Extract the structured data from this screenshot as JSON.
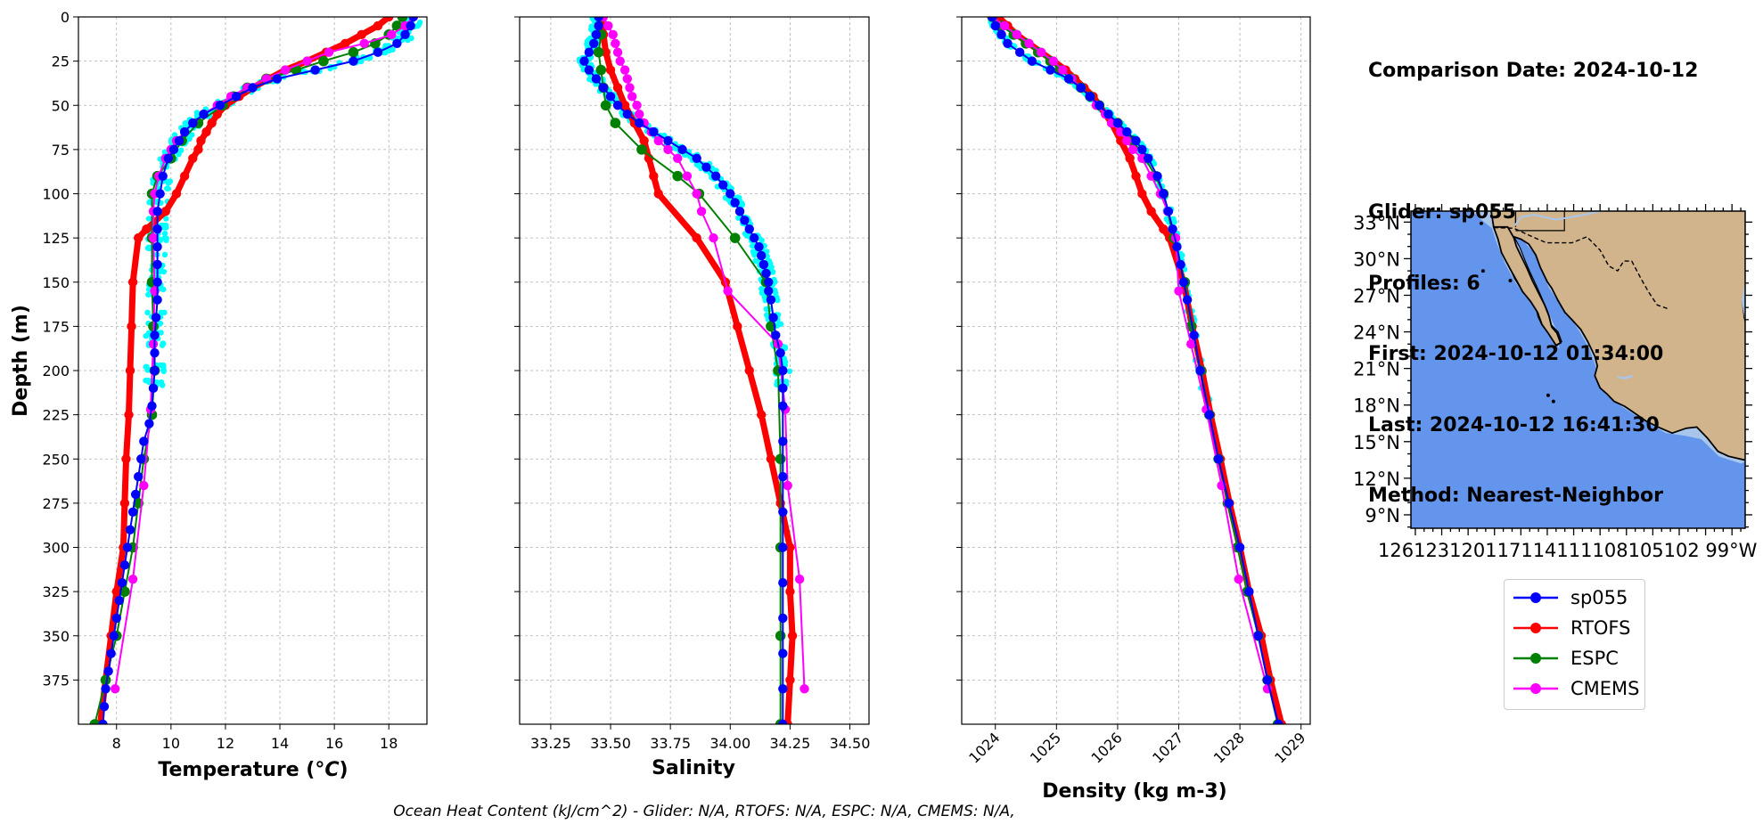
{
  "info": {
    "comparison_date": "Comparison Date: 2024-10-12",
    "glider": "Glider: sp055",
    "profiles": "Profiles: 6",
    "first": "First: 2024-10-12 01:34:00",
    "last": "Last: 2024-10-12 16:41:30",
    "method": "Method: Nearest-Neighbor"
  },
  "footer": "Ocean Heat Content (kJ/cm^2) - Glider: N/A,  RTOFS: N/A,  ESPC: N/A,  CMEMS: N/A,",
  "colors": {
    "sp055": "#0000ff",
    "RTOFS": "#ff0000",
    "ESPC": "#008000",
    "CMEMS": "#ff00ff",
    "raw": "#00ffff",
    "ocean": "#6495ed",
    "land": "#d2b48c",
    "shelf": "#a9c6ea"
  },
  "legend": [
    {
      "name": "sp055",
      "color": "#0000ff"
    },
    {
      "name": "RTOFS",
      "color": "#ff0000"
    },
    {
      "name": "ESPC",
      "color": "#008000"
    },
    {
      "name": "CMEMS",
      "color": "#ff00ff"
    }
  ],
  "map": {
    "lat_labels": [
      "33°N",
      "30°N",
      "27°N",
      "24°N",
      "21°N",
      "18°N",
      "15°N",
      "12°N",
      "9°N"
    ],
    "lon_labels": [
      "126°W",
      "123°W",
      "120°W",
      "117°W",
      "114°W",
      "111°W",
      "108°W",
      "105°W",
      "102°W",
      "99°W"
    ],
    "lon_label_overlap": "126123120117114111108105102 99°W"
  },
  "chart_data": [
    {
      "type": "line",
      "id": "temperature",
      "xlabel": "Temperature ($^{o}C$)",
      "xlabel_display": "Temperature (°C)",
      "ylabel": "Depth (m)",
      "xlim": [
        6.6,
        19.4
      ],
      "ylim": [
        400,
        0
      ],
      "xticks": [
        8,
        10,
        12,
        14,
        16,
        18
      ],
      "yticks": [
        0,
        25,
        50,
        75,
        100,
        125,
        150,
        175,
        200,
        225,
        250,
        275,
        300,
        325,
        350,
        375
      ],
      "grid": true,
      "series": [
        {
          "name": "sp055",
          "depth": [
            0,
            5,
            10,
            15,
            20,
            25,
            30,
            35,
            40,
            45,
            50,
            55,
            60,
            65,
            70,
            75,
            80,
            90,
            100,
            110,
            120,
            130,
            140,
            150,
            160,
            170,
            180,
            190,
            200,
            210,
            220,
            230,
            240,
            250,
            260,
            270,
            280,
            290,
            300,
            310,
            320,
            330,
            340,
            350,
            360,
            370,
            380,
            390,
            400
          ],
          "values": [
            18.9,
            18.8,
            18.6,
            18.3,
            17.6,
            16.7,
            15.3,
            13.9,
            13.0,
            12.4,
            11.8,
            11.2,
            10.8,
            10.5,
            10.3,
            10.1,
            9.9,
            9.7,
            9.6,
            9.5,
            9.5,
            9.5,
            9.5,
            9.5,
            9.5,
            9.45,
            9.4,
            9.4,
            9.4,
            9.35,
            9.3,
            9.2,
            9.0,
            8.9,
            8.8,
            8.7,
            8.6,
            8.5,
            8.4,
            8.3,
            8.2,
            8.1,
            8.0,
            7.9,
            7.8,
            7.7,
            7.6,
            7.55,
            7.5
          ]
        },
        {
          "name": "RTOFS",
          "depth": [
            0,
            5,
            10,
            15,
            20,
            25,
            30,
            35,
            40,
            45,
            50,
            55,
            60,
            65,
            70,
            75,
            80,
            90,
            100,
            110,
            120,
            125,
            150,
            175,
            200,
            225,
            250,
            275,
            300,
            325,
            350,
            375,
            400
          ],
          "values": [
            18.0,
            17.6,
            17.0,
            16.4,
            15.7,
            15.0,
            14.2,
            13.6,
            13.0,
            12.5,
            12.0,
            11.7,
            11.5,
            11.3,
            11.1,
            11.0,
            10.8,
            10.5,
            10.2,
            9.8,
            9.1,
            8.8,
            8.6,
            8.55,
            8.5,
            8.45,
            8.35,
            8.3,
            8.25,
            8.0,
            7.8,
            7.6,
            7.4
          ]
        },
        {
          "name": "ESPC",
          "depth": [
            0,
            5,
            10,
            15,
            20,
            25,
            30,
            35,
            40,
            45,
            50,
            60,
            70,
            80,
            90,
            100,
            125,
            150,
            175,
            200,
            225,
            250,
            275,
            300,
            325,
            350,
            375,
            400
          ],
          "values": [
            18.5,
            18.3,
            18.0,
            17.5,
            16.7,
            15.6,
            14.6,
            13.5,
            12.8,
            12.3,
            11.9,
            11.0,
            10.4,
            10.0,
            9.5,
            9.3,
            9.3,
            9.3,
            9.35,
            9.4,
            9.3,
            9.0,
            8.8,
            8.6,
            8.3,
            8.0,
            7.6,
            7.2
          ]
        },
        {
          "name": "CMEMS",
          "depth": [
            0,
            5,
            10,
            15,
            20,
            25,
            30,
            35,
            40,
            45,
            50,
            55,
            60,
            65,
            70,
            75,
            80,
            90,
            100,
            110,
            125,
            155,
            185,
            222,
            265,
            318,
            380
          ],
          "values": [
            18.9,
            18.6,
            18.1,
            17.1,
            15.8,
            15.0,
            14.2,
            13.5,
            12.8,
            12.2,
            11.7,
            11.2,
            10.8,
            10.5,
            10.2,
            10.0,
            9.8,
            9.55,
            9.4,
            9.35,
            9.35,
            9.4,
            9.35,
            9.25,
            9.0,
            8.6,
            7.95
          ]
        }
      ]
    },
    {
      "type": "line",
      "id": "salinity",
      "xlabel": "Salinity",
      "xlim": [
        33.12,
        34.58
      ],
      "ylim": [
        400,
        0
      ],
      "xticks": [
        33.25,
        33.5,
        33.75,
        34.0,
        34.25,
        34.5
      ],
      "xtick_labels": [
        "33.25",
        "33.50",
        "33.75",
        "34.00",
        "34.25",
        "34.50"
      ],
      "grid": true,
      "series": [
        {
          "name": "sp055",
          "depth": [
            0,
            5,
            10,
            15,
            20,
            25,
            30,
            35,
            40,
            45,
            50,
            55,
            60,
            65,
            70,
            75,
            80,
            85,
            90,
            95,
            100,
            105,
            110,
            115,
            120,
            125,
            130,
            135,
            140,
            145,
            150,
            155,
            160,
            170,
            180,
            190,
            200,
            210,
            220,
            240,
            260,
            280,
            300,
            320,
            340,
            360,
            380,
            400
          ],
          "values": [
            33.45,
            33.45,
            33.44,
            33.43,
            33.41,
            33.39,
            33.41,
            33.44,
            33.47,
            33.5,
            33.53,
            33.57,
            33.62,
            33.68,
            33.74,
            33.8,
            33.86,
            33.9,
            33.94,
            33.97,
            34.0,
            34.02,
            34.04,
            34.06,
            34.08,
            34.1,
            34.12,
            34.13,
            34.14,
            34.15,
            34.16,
            34.16,
            34.17,
            34.18,
            34.19,
            34.21,
            34.22,
            34.22,
            34.22,
            34.22,
            34.22,
            34.22,
            34.22,
            34.22,
            34.22,
            34.22,
            34.22,
            34.22
          ]
        },
        {
          "name": "RTOFS",
          "depth": [
            0,
            10,
            20,
            30,
            40,
            50,
            60,
            70,
            80,
            90,
            100,
            125,
            150,
            175,
            200,
            225,
            250,
            275,
            300,
            325,
            350,
            375,
            400
          ],
          "values": [
            33.46,
            33.47,
            33.48,
            33.5,
            33.53,
            33.56,
            33.6,
            33.64,
            33.66,
            33.68,
            33.7,
            33.86,
            33.98,
            34.03,
            34.08,
            34.13,
            34.17,
            34.21,
            34.25,
            34.25,
            34.26,
            34.25,
            34.24
          ]
        },
        {
          "name": "ESPC",
          "depth": [
            0,
            10,
            20,
            30,
            40,
            50,
            60,
            75,
            90,
            100,
            125,
            150,
            175,
            200,
            250,
            300,
            350,
            400
          ],
          "values": [
            33.46,
            33.46,
            33.45,
            33.46,
            33.47,
            33.48,
            33.52,
            33.63,
            33.78,
            33.87,
            34.02,
            34.15,
            34.17,
            34.2,
            34.21,
            34.21,
            34.21,
            34.21
          ]
        },
        {
          "name": "CMEMS",
          "depth": [
            0,
            5,
            10,
            15,
            20,
            25,
            30,
            35,
            40,
            45,
            50,
            55,
            60,
            65,
            70,
            75,
            80,
            90,
            100,
            110,
            125,
            155,
            185,
            222,
            265,
            318,
            380
          ],
          "values": [
            33.47,
            33.49,
            33.51,
            33.52,
            33.53,
            33.54,
            33.56,
            33.57,
            33.58,
            33.59,
            33.61,
            33.62,
            33.64,
            33.67,
            33.7,
            33.74,
            33.78,
            33.82,
            33.86,
            33.88,
            33.93,
            33.99,
            34.2,
            34.23,
            34.24,
            34.29,
            34.31
          ]
        }
      ]
    },
    {
      "type": "line",
      "id": "density",
      "xlabel": "Density (kg m-3)",
      "xlim": [
        1023.45,
        1029.15
      ],
      "ylim": [
        400,
        0
      ],
      "xticks": [
        1024,
        1025,
        1026,
        1027,
        1028,
        1029
      ],
      "grid": true,
      "series": [
        {
          "name": "sp055",
          "depth": [
            0,
            5,
            10,
            15,
            20,
            25,
            30,
            35,
            40,
            45,
            50,
            55,
            60,
            65,
            70,
            75,
            80,
            90,
            100,
            110,
            120,
            130,
            140,
            150,
            160,
            180,
            200,
            225,
            250,
            275,
            300,
            325,
            350,
            375,
            400
          ],
          "values": [
            1023.95,
            1024.0,
            1024.1,
            1024.2,
            1024.4,
            1024.6,
            1024.9,
            1025.2,
            1025.4,
            1025.55,
            1025.7,
            1025.85,
            1026.0,
            1026.15,
            1026.3,
            1026.4,
            1026.5,
            1026.65,
            1026.75,
            1026.83,
            1026.9,
            1026.97,
            1027.03,
            1027.08,
            1027.14,
            1027.25,
            1027.35,
            1027.5,
            1027.65,
            1027.82,
            1028.0,
            1028.15,
            1028.3,
            1028.45,
            1028.63
          ]
        },
        {
          "name": "RTOFS",
          "depth": [
            0,
            5,
            10,
            15,
            20,
            25,
            30,
            35,
            40,
            45,
            50,
            60,
            70,
            80,
            90,
            100,
            110,
            120,
            125,
            150,
            175,
            200,
            225,
            250,
            275,
            300,
            325,
            350,
            375,
            400
          ],
          "values": [
            1024.05,
            1024.2,
            1024.35,
            1024.55,
            1024.75,
            1024.95,
            1025.15,
            1025.3,
            1025.45,
            1025.6,
            1025.7,
            1025.9,
            1026.05,
            1026.2,
            1026.3,
            1026.4,
            1026.55,
            1026.75,
            1026.85,
            1027.08,
            1027.22,
            1027.38,
            1027.52,
            1027.68,
            1027.83,
            1028.0,
            1028.15,
            1028.35,
            1028.5,
            1028.68
          ]
        },
        {
          "name": "ESPC",
          "depth": [
            0,
            5,
            10,
            15,
            20,
            25,
            30,
            35,
            40,
            45,
            50,
            60,
            70,
            80,
            90,
            100,
            125,
            150,
            175,
            200,
            225,
            250,
            275,
            300,
            325,
            350,
            375,
            400
          ],
          "values": [
            1023.95,
            1024.1,
            1024.3,
            1024.5,
            1024.7,
            1024.9,
            1025.05,
            1025.25,
            1025.4,
            1025.55,
            1025.7,
            1026.0,
            1026.25,
            1026.45,
            1026.62,
            1026.75,
            1026.92,
            1027.1,
            1027.2,
            1027.36,
            1027.5,
            1027.65,
            1027.8,
            1027.96,
            1028.12,
            1028.3,
            1028.45,
            1028.62
          ]
        },
        {
          "name": "CMEMS",
          "depth": [
            0,
            5,
            10,
            15,
            20,
            25,
            30,
            35,
            40,
            45,
            50,
            55,
            60,
            65,
            70,
            75,
            80,
            90,
            100,
            110,
            125,
            155,
            185,
            222,
            265,
            318,
            380
          ],
          "values": [
            1023.95,
            1024.15,
            1024.35,
            1024.55,
            1024.75,
            1024.95,
            1025.1,
            1025.25,
            1025.4,
            1025.55,
            1025.65,
            1025.8,
            1025.9,
            1026.05,
            1026.15,
            1026.25,
            1026.4,
            1026.55,
            1026.7,
            1026.82,
            1026.95,
            1027.0,
            1027.2,
            1027.45,
            1027.7,
            1027.98,
            1028.45
          ]
        }
      ]
    }
  ]
}
